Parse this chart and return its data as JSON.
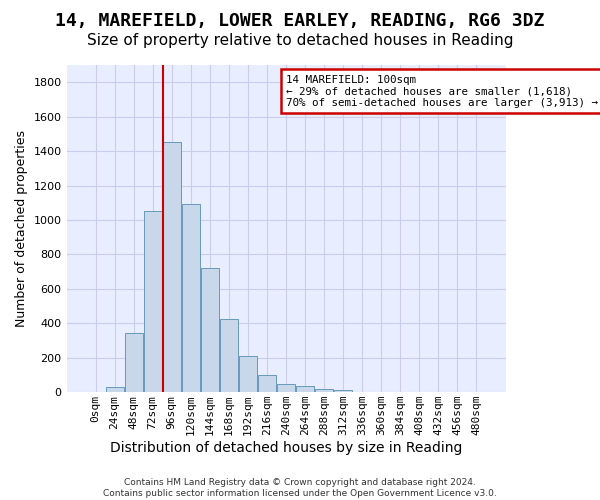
{
  "title": "14, MAREFIELD, LOWER EARLEY, READING, RG6 3DZ",
  "subtitle": "Size of property relative to detached houses in Reading",
  "xlabel": "Distribution of detached houses by size in Reading",
  "ylabel": "Number of detached properties",
  "bar_values": [
    0,
    30,
    345,
    1050,
    1450,
    1090,
    720,
    425,
    210,
    100,
    45,
    35,
    20,
    15,
    0,
    0,
    0,
    0,
    0,
    0,
    0
  ],
  "bin_labels": [
    "0sqm",
    "24sqm",
    "48sqm",
    "72sqm",
    "96sqm",
    "120sqm",
    "144sqm",
    "168sqm",
    "192sqm",
    "216sqm",
    "240sqm",
    "264sqm",
    "288sqm",
    "312sqm",
    "336sqm",
    "360sqm",
    "384sqm",
    "408sqm",
    "432sqm",
    "456sqm",
    "480sqm"
  ],
  "bar_color": "#c8d8ea",
  "bar_edge_color": "#6699bb",
  "annotation_text": "14 MAREFIELD: 100sqm\n← 29% of detached houses are smaller (1,618)\n70% of semi-detached houses are larger (3,913) →",
  "annotation_box_color": "#ffffff",
  "annotation_box_edge_color": "#cc0000",
  "vline_color": "#cc0000",
  "grid_color": "#ccccee",
  "background_color": "#e8eeff",
  "footer_line1": "Contains HM Land Registry data © Crown copyright and database right 2024.",
  "footer_line2": "Contains public sector information licensed under the Open Government Licence v3.0.",
  "ylim": [
    0,
    1900
  ],
  "yticks": [
    0,
    200,
    400,
    600,
    800,
    1000,
    1200,
    1400,
    1600,
    1800
  ],
  "title_fontsize": 13,
  "subtitle_fontsize": 11,
  "xlabel_fontsize": 10,
  "ylabel_fontsize": 9,
  "tick_fontsize": 8,
  "vline_bin_index": 4
}
